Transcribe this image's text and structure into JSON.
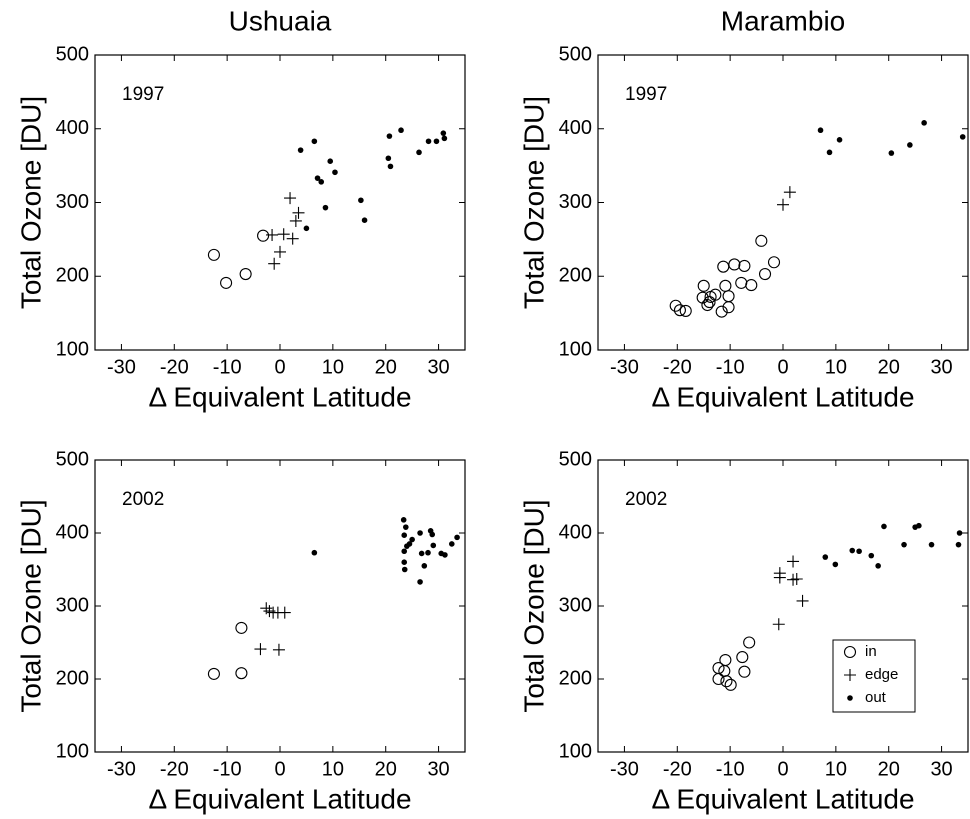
{
  "chart_data": [
    {
      "type": "scatter",
      "title": "Ushuaia",
      "annotation": "1997",
      "x_label": "Δ Equivalent Latitude",
      "y_label": "Total Ozone [DU]",
      "xlim": [
        -35,
        35
      ],
      "ylim": [
        100,
        500
      ],
      "xticks": [
        -30,
        -20,
        -10,
        0,
        10,
        20,
        30
      ],
      "yticks": [
        100,
        200,
        300,
        400,
        500
      ],
      "grid": false,
      "series": [
        {
          "name": "in",
          "marker": "o",
          "color": "#000000",
          "x": [
            -12.5,
            -10.2,
            -6.5,
            -3.2
          ],
          "values": [
            229,
            191,
            203,
            255
          ]
        },
        {
          "name": "edge",
          "marker": "+",
          "color": "#000000",
          "x": [
            -1.5,
            1.9,
            0.7,
            0,
            -1.1,
            2.4,
            3.0,
            3.5
          ],
          "values": [
            256,
            306,
            257,
            233,
            217,
            251,
            275,
            286
          ]
        },
        {
          "name": "out",
          "marker": ".",
          "color": "#000000",
          "x": [
            3.9,
            5,
            6.5,
            7.1,
            7.8,
            9.5,
            10.4,
            8.6,
            15.3,
            16,
            20.7,
            20.5,
            20.9,
            22.9,
            26.3,
            28.1,
            29.6,
            30.9,
            31.1
          ],
          "values": [
            371,
            265,
            383,
            333,
            328,
            356,
            341,
            293,
            303,
            276,
            390,
            360,
            349,
            398,
            368,
            383,
            383,
            394,
            387
          ]
        }
      ]
    },
    {
      "type": "scatter",
      "title": "Marambio",
      "annotation": "1997",
      "x_label": "Δ Equivalent Latitude",
      "y_label": "Total Ozone [DU]",
      "xlim": [
        -35,
        35
      ],
      "ylim": [
        100,
        500
      ],
      "xticks": [
        -30,
        -20,
        -10,
        0,
        10,
        20,
        30
      ],
      "yticks": [
        100,
        200,
        300,
        400,
        500
      ],
      "grid": false,
      "series": [
        {
          "name": "in",
          "marker": "o",
          "color": "#000000",
          "x": [
            -20.3,
            -19.5,
            -18.4,
            -15,
            -15.2,
            -13.9,
            -14.3,
            -13.7,
            -12.8,
            -11.6,
            -11.3,
            -10.9,
            -10.3,
            -10.3,
            -9.2,
            -7.9,
            -7.3,
            -6,
            -4.1,
            -3.4,
            -1.7
          ],
          "values": [
            160,
            154,
            153,
            187,
            171,
            165,
            161,
            172,
            175,
            152,
            213,
            187,
            173,
            158,
            216,
            191,
            214,
            188,
            248,
            203,
            219
          ]
        },
        {
          "name": "edge",
          "marker": "+",
          "color": "#000000",
          "x": [
            0,
            1.3
          ],
          "values": [
            297,
            314
          ]
        },
        {
          "name": "out",
          "marker": ".",
          "color": "#000000",
          "x": [
            7.1,
            8.8,
            10.7,
            20.5,
            24,
            26.7,
            34
          ],
          "values": [
            398,
            368,
            385,
            367,
            378,
            408,
            389
          ]
        }
      ]
    },
    {
      "type": "scatter",
      "annotation": "2002",
      "x_label": "Δ Equivalent Latitude",
      "y_label": "Total Ozone [DU]",
      "xlim": [
        -35,
        35
      ],
      "ylim": [
        100,
        500
      ],
      "xticks": [
        -30,
        -20,
        -10,
        0,
        10,
        20,
        30
      ],
      "yticks": [
        100,
        200,
        300,
        400,
        500
      ],
      "grid": false,
      "series": [
        {
          "name": "in",
          "marker": "o",
          "color": "#000000",
          "x": [
            -12.5,
            -7.3,
            -7.3
          ],
          "values": [
            207,
            208,
            270
          ]
        },
        {
          "name": "edge",
          "marker": "+",
          "color": "#000000",
          "x": [
            -3.7,
            -0.2,
            -2.6,
            -2,
            -1.3,
            -0.4,
            0.9
          ],
          "values": [
            241,
            240,
            297,
            293,
            291,
            291,
            291
          ]
        },
        {
          "name": "out",
          "marker": ".",
          "color": "#000000",
          "x": [
            6.5,
            23.4,
            23.8,
            23.5,
            24,
            24.5,
            23.5,
            23.5,
            23.6,
            26.5,
            26.8,
            26.5,
            27.3,
            28.5,
            28.8,
            29,
            30.5,
            31.2,
            32.5,
            33.5,
            25,
            28
          ],
          "values": [
            373,
            418,
            408,
            397,
            382,
            385,
            375,
            360,
            350,
            400,
            372,
            333,
            355,
            403,
            398,
            383,
            372,
            370,
            385,
            394,
            391,
            373
          ]
        }
      ]
    },
    {
      "type": "scatter",
      "annotation": "2002",
      "x_label": "Δ Equivalent Latitude",
      "y_label": "Total Ozone [DU]",
      "xlim": [
        -35,
        35
      ],
      "ylim": [
        100,
        500
      ],
      "xticks": [
        -30,
        -20,
        -10,
        0,
        10,
        20,
        30
      ],
      "yticks": [
        100,
        200,
        300,
        400,
        500
      ],
      "grid": false,
      "legend": "lower right",
      "series": [
        {
          "name": "in",
          "marker": "o",
          "color": "#000000",
          "x": [
            -12.2,
            -12.2,
            -11.1,
            -10.9,
            -10.7,
            -9.9,
            -7.7,
            -7.3,
            -6.4
          ],
          "values": [
            215,
            200,
            211,
            226,
            197,
            192,
            230,
            210,
            250
          ]
        },
        {
          "name": "edge",
          "marker": "+",
          "color": "#000000",
          "x": [
            -0.6,
            -0.6,
            1.9,
            1.9,
            2.6,
            -0.8,
            3.7
          ],
          "values": [
            345,
            339,
            361,
            336,
            337,
            275,
            307
          ]
        },
        {
          "name": "out",
          "marker": ".",
          "color": "#000000",
          "x": [
            8,
            9.9,
            13.1,
            14.4,
            16.7,
            18,
            19.1,
            22.9,
            25,
            25.7,
            28.1,
            33.2,
            33.4
          ],
          "values": [
            367,
            357,
            376,
            375,
            369,
            355,
            409,
            384,
            408,
            410,
            384,
            384,
            400
          ]
        }
      ]
    }
  ]
}
